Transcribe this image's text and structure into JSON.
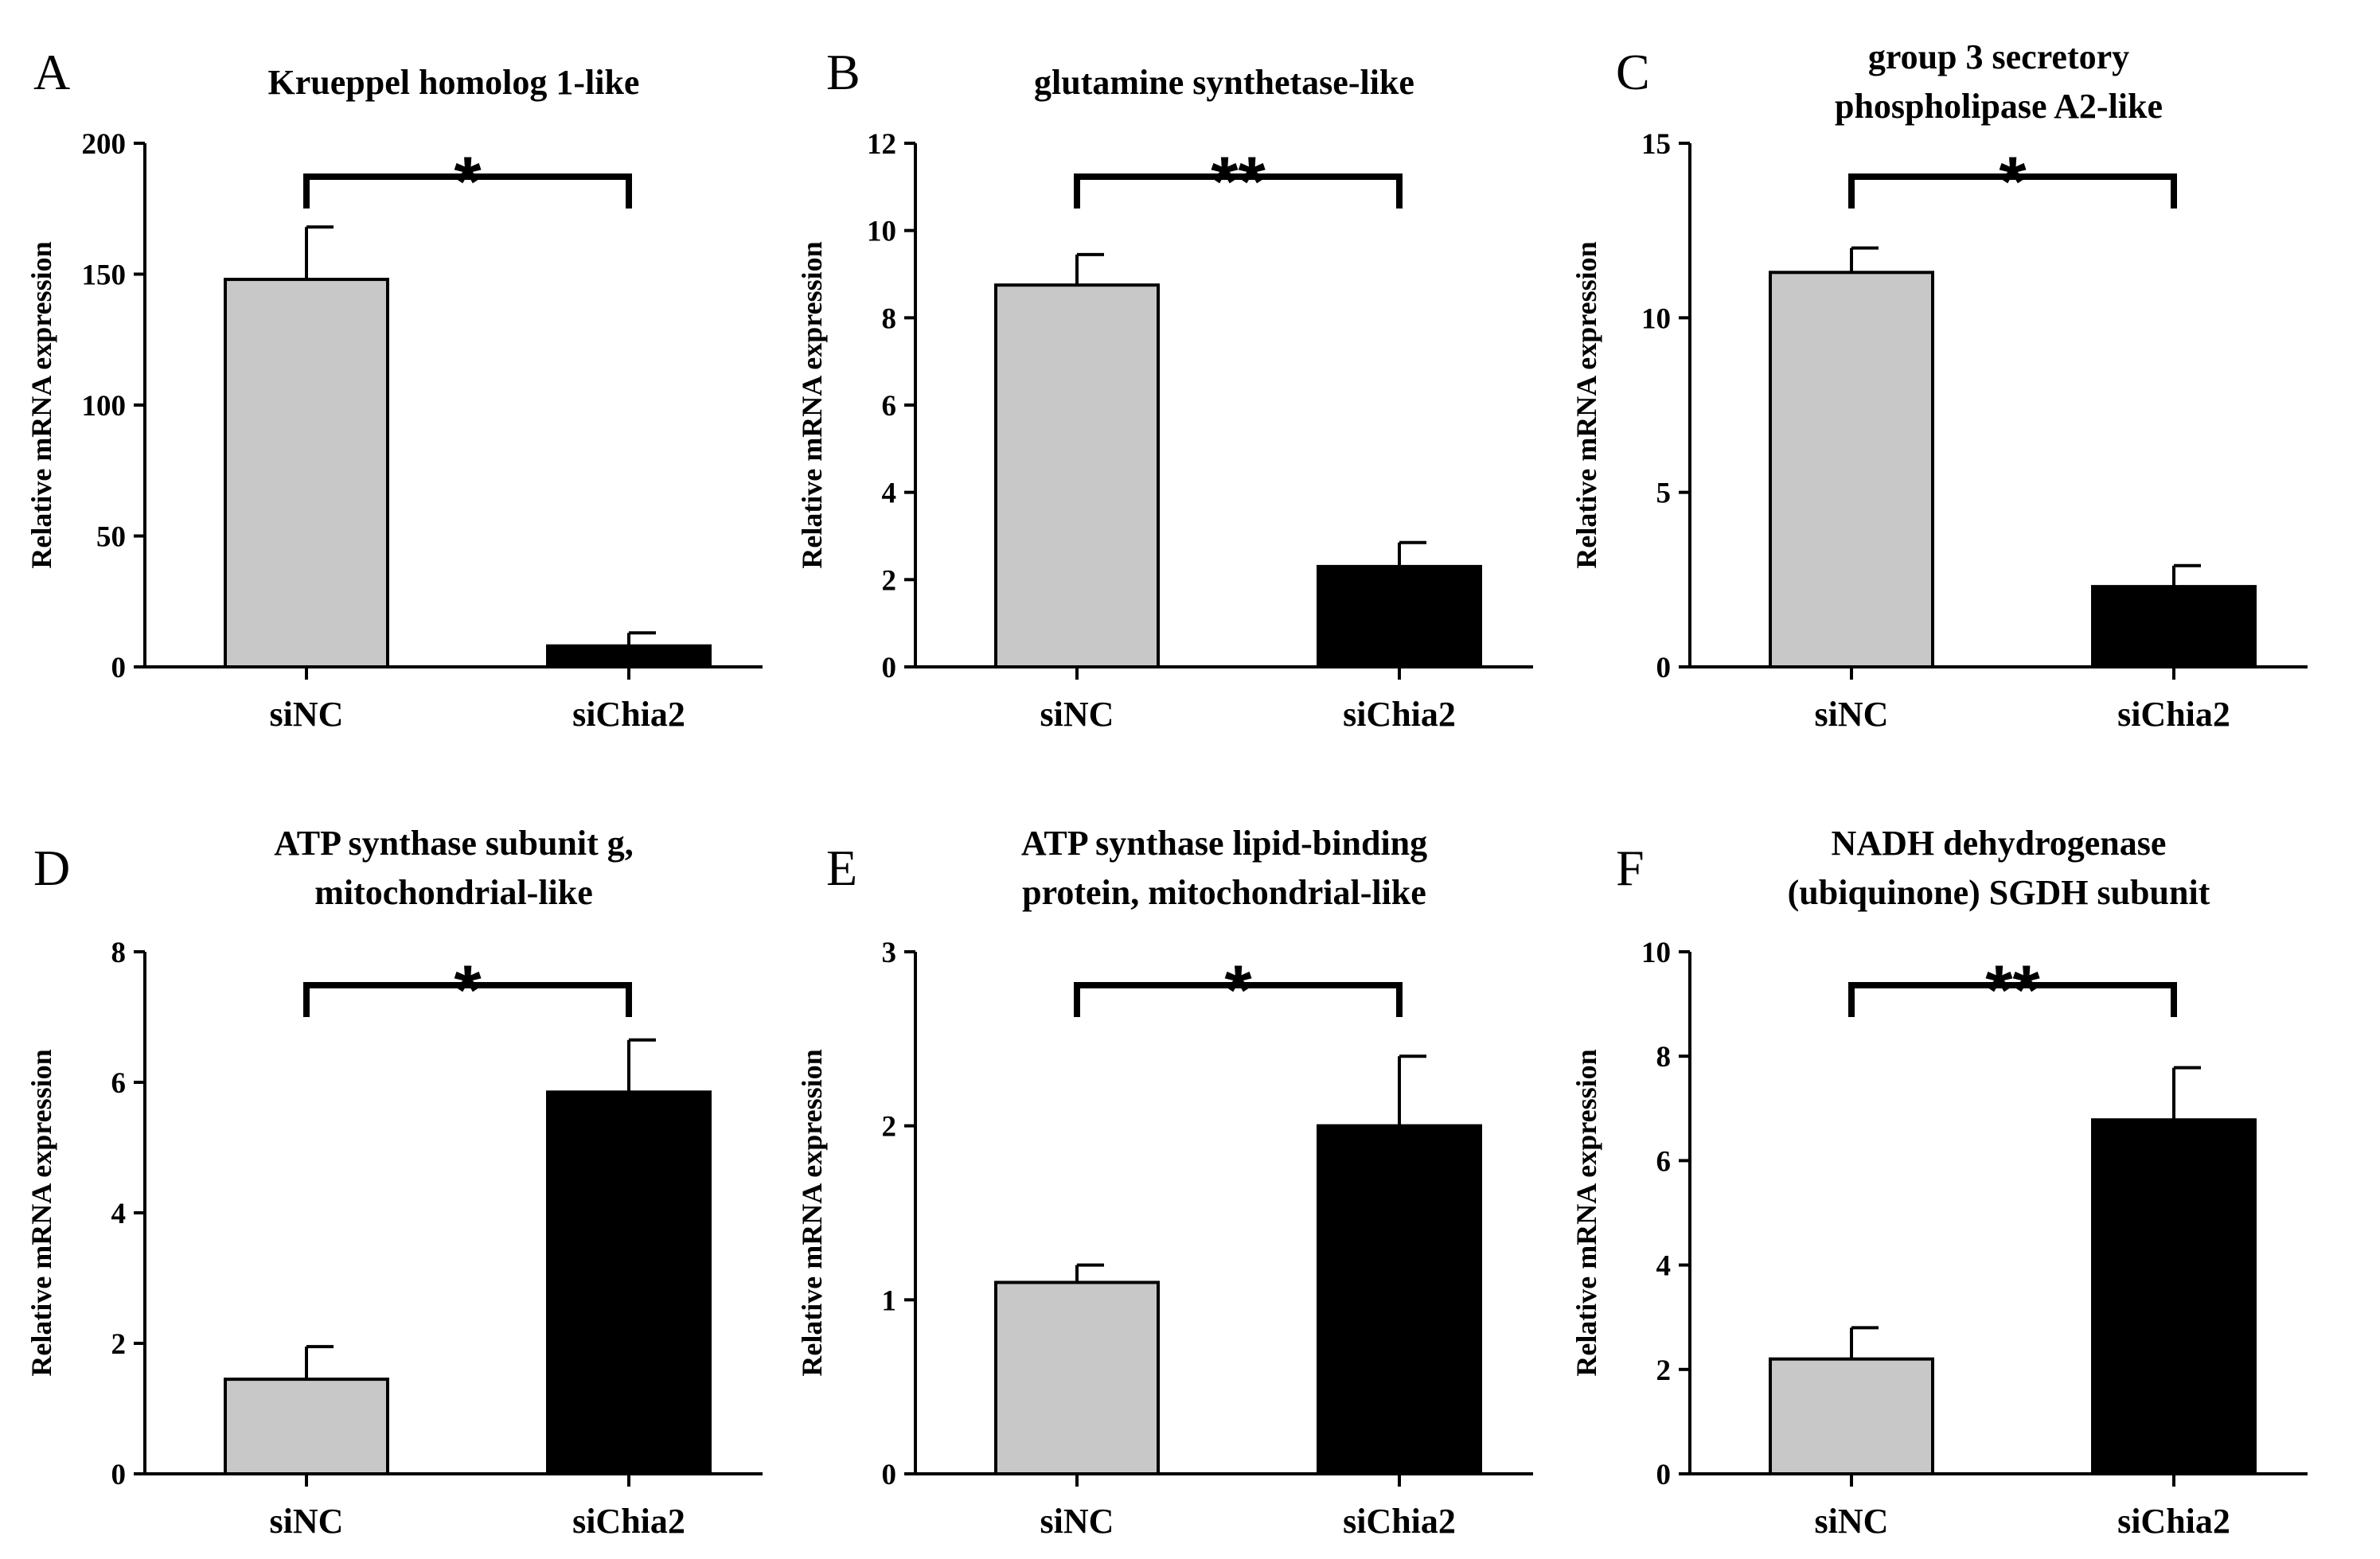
{
  "colors": {
    "siNC": "#c8c8c8",
    "siChia2": "#000000"
  },
  "chart_data": [
    {
      "type": "bar",
      "panel": "A",
      "title": [
        "Krueppel homolog 1-like"
      ],
      "ylabel": "Relative mRNA expression",
      "categories": [
        "siNC",
        "siChia2"
      ],
      "values": [
        148,
        8
      ],
      "errors": [
        20,
        5
      ],
      "ylim": [
        0,
        200
      ],
      "yticks": [
        0,
        50,
        100,
        150,
        200
      ],
      "ytick_labels": [
        "0",
        "50",
        "100",
        "150",
        "200"
      ],
      "significance": "*"
    },
    {
      "type": "bar",
      "panel": "B",
      "title": [
        "glutamine synthetase-like"
      ],
      "ylabel": "Relative mRNA expression",
      "categories": [
        "siNC",
        "siChia2"
      ],
      "values": [
        8.75,
        2.3
      ],
      "errors": [
        0.7,
        0.55
      ],
      "ylim": [
        0,
        12
      ],
      "yticks": [
        0,
        2,
        4,
        6,
        8,
        10,
        12
      ],
      "ytick_labels": [
        "0",
        "2",
        "4",
        "6",
        "8",
        "10",
        "12"
      ],
      "significance": "**"
    },
    {
      "type": "bar",
      "panel": "C",
      "title": [
        "group 3 secretory",
        "phospholipase A2-like"
      ],
      "ylabel": "Relative mRNA expression",
      "categories": [
        "siNC",
        "siChia2"
      ],
      "values": [
        11.3,
        2.3
      ],
      "errors": [
        0.7,
        0.6
      ],
      "ylim": [
        0,
        15
      ],
      "yticks": [
        0,
        5,
        10,
        15
      ],
      "ytick_labels": [
        "0",
        "5",
        "10",
        "15"
      ],
      "significance": "*"
    },
    {
      "type": "bar",
      "panel": "D",
      "title": [
        "ATP synthase subunit g,",
        "mitochondrial-like"
      ],
      "ylabel": "Relative mRNA expression",
      "categories": [
        "siNC",
        "siChia2"
      ],
      "values": [
        1.45,
        5.85
      ],
      "errors": [
        0.5,
        0.8
      ],
      "ylim": [
        0,
        8
      ],
      "yticks": [
        0,
        2,
        4,
        6,
        8
      ],
      "ytick_labels": [
        "0",
        "2",
        "4",
        "6",
        "8"
      ],
      "significance": "*"
    },
    {
      "type": "bar",
      "panel": "E",
      "title": [
        "ATP synthase lipid-binding",
        "protein, mitochondrial-like"
      ],
      "ylabel": "Relative mRNA expression",
      "categories": [
        "siNC",
        "siChia2"
      ],
      "values": [
        1.1,
        2.0
      ],
      "errors": [
        0.1,
        0.4
      ],
      "ylim": [
        0,
        3
      ],
      "yticks": [
        0,
        1,
        2,
        3
      ],
      "ytick_labels": [
        "0",
        "1",
        "2",
        "3"
      ],
      "significance": "*"
    },
    {
      "type": "bar",
      "panel": "F",
      "title": [
        "NADH dehydrogenase",
        "(ubiquinone) SGDH subunit"
      ],
      "ylabel": "Relative mRNA expression",
      "categories": [
        "siNC",
        "siChia2"
      ],
      "values": [
        2.2,
        6.78
      ],
      "errors": [
        0.6,
        1.0
      ],
      "ylim": [
        0,
        10
      ],
      "yticks": [
        0,
        2,
        4,
        6,
        8,
        10
      ],
      "ytick_labels": [
        "0",
        "2",
        "4",
        "6",
        "8",
        "10"
      ],
      "significance": "**"
    }
  ]
}
